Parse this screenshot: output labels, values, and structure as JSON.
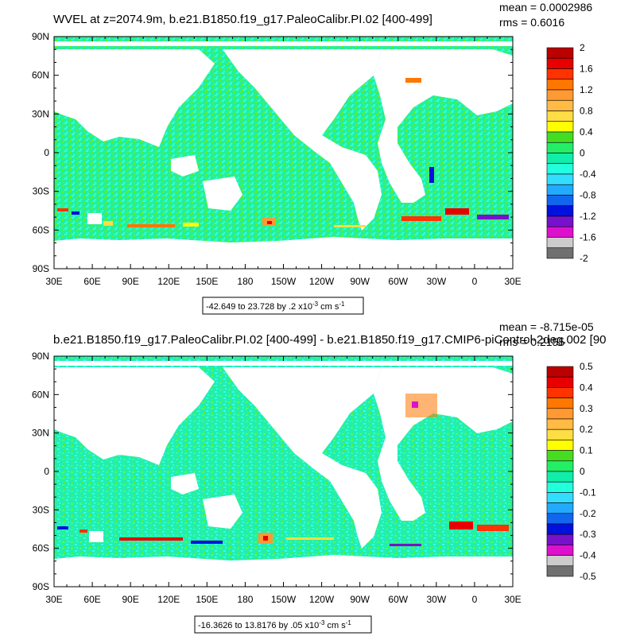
{
  "panels": [
    {
      "title": "WVEL at z=2074.9m, b.e21.B1850.f19_g17.PaleoCalibr.PI.02 [400-499]",
      "stats": {
        "mean": "mean = 0.0002986",
        "rms": "rms = 0.6016"
      },
      "lat_labels": [
        "90N",
        "60N",
        "30N",
        "0",
        "30S",
        "60S",
        "90S"
      ],
      "lon_labels": [
        "30E",
        "60E",
        "90E",
        "120E",
        "150E",
        "180",
        "150W",
        "120W",
        "90W",
        "60W",
        "30W",
        "0",
        "30E"
      ],
      "colorbar_labels": [
        "2",
        "1.6",
        "1.2",
        "0.8",
        "0.4",
        "0",
        "-0.4",
        "-0.8",
        "-1.2",
        "-1.6",
        "-2"
      ],
      "range_note": "-42.649 to 23.728 by .2 x10",
      "range_exp": "-3",
      "range_unit": " cm s",
      "range_unit_exp": "-1"
    },
    {
      "title": "b.e21.B1850.f19_g17.PaleoCalibr.PI.02 [400-499] - b.e21.B1850.f19_g17.CMIP6-piControl-2deg.002 [90",
      "stats": {
        "mean": "mean = -8.715e-05",
        "rms": "rms = 0.2155"
      },
      "lat_labels": [
        "90N",
        "60N",
        "30N",
        "0",
        "30S",
        "60S",
        "90S"
      ],
      "lon_labels": [
        "30E",
        "60E",
        "90E",
        "120E",
        "150E",
        "180",
        "150W",
        "120W",
        "90W",
        "60W",
        "30W",
        "0",
        "30E"
      ],
      "colorbar_labels": [
        "0.5",
        "0.4",
        "0.3",
        "0.2",
        "0.1",
        "0",
        "-0.1",
        "-0.2",
        "-0.3",
        "-0.4",
        "-0.5"
      ],
      "range_note": "-16.3626 to 13.8176 by .05 x10",
      "range_exp": "-3",
      "range_unit": " cm s",
      "range_unit_exp": "-1"
    }
  ],
  "colorbar_colors": [
    "#bb0000",
    "#e80000",
    "#ff3300",
    "#ff7700",
    "#ff9933",
    "#ffbb44",
    "#ffdd44",
    "#ffff00",
    "#44dd22",
    "#22ee66",
    "#11eeaa",
    "#22ffdd",
    "#33ddff",
    "#22aaff",
    "#1166ee",
    "#0011dd",
    "#7711cc",
    "#dd11cc",
    "#cccccc",
    "#707070"
  ],
  "colors": {
    "ocean_base": "#22f2a6",
    "land": "#ffffff",
    "frame": "#000000"
  }
}
